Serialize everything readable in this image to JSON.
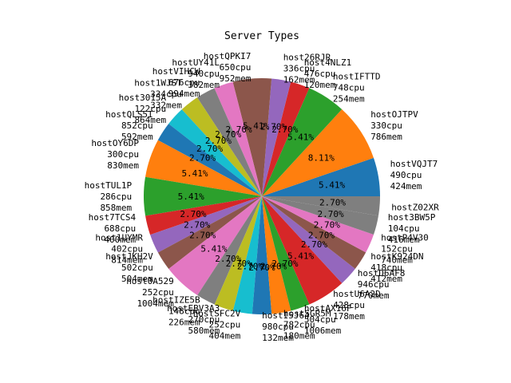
{
  "chart_data": {
    "type": "pie",
    "title": "Server Types",
    "start_angle_deg": 0,
    "direction": "counterclockwise",
    "slices": [
      {
        "label": "hostVQJT7",
        "cpu": "490cpu",
        "mem": "424mem",
        "value": 5.41,
        "color": "#1f77b4"
      },
      {
        "label": "hostOJTPV",
        "cpu": "330cpu",
        "mem": "786mem",
        "value": 8.11,
        "color": "#ff7f0e"
      },
      {
        "label": "hostIFTTD",
        "cpu": "748cpu",
        "mem": "254mem",
        "value": 5.41,
        "color": "#2ca02c"
      },
      {
        "label": "host4NLZ1",
        "cpu": "476cpu",
        "mem": "120mem",
        "value": 2.7,
        "color": "#d62728"
      },
      {
        "label": "host26RJR",
        "cpu": "336cpu",
        "mem": "162mem",
        "value": 2.7,
        "color": "#9467bd"
      },
      {
        "label": "hostQPKI7",
        "cpu": "650cpu",
        "mem": "952mem",
        "value": 5.41,
        "color": "#8c564b"
      },
      {
        "label": "hostUY41L",
        "cpu": "940cpu",
        "mem": "382mem",
        "value": 2.7,
        "color": "#e377c2"
      },
      {
        "label": "hostVIHCW",
        "cpu": "676cpu",
        "mem": "994mem",
        "value": 2.7,
        "color": "#7f7f7f"
      },
      {
        "label": "host1WJST",
        "cpu": "334cpu",
        "mem": "332mem",
        "value": 2.7,
        "color": "#bcbd22"
      },
      {
        "label": "host3015A",
        "cpu": "122cpu",
        "mem": "864mem",
        "value": 2.7,
        "color": "#17becf"
      },
      {
        "label": "hostQLS5I",
        "cpu": "852cpu",
        "mem": "592mem",
        "value": 2.7,
        "color": "#1f77b4"
      },
      {
        "label": "hostOY6DP",
        "cpu": "300cpu",
        "mem": "830mem",
        "value": 5.41,
        "color": "#ff7f0e"
      },
      {
        "label": "hostTUL1P",
        "cpu": "286cpu",
        "mem": "858mem",
        "value": 5.41,
        "color": "#2ca02c"
      },
      {
        "label": "host7TCS4",
        "cpu": "688cpu",
        "mem": "400mem",
        "value": 2.7,
        "color": "#d62728"
      },
      {
        "label": "host1UYMR",
        "cpu": "402cpu",
        "mem": "814mem",
        "value": 2.7,
        "color": "#9467bd"
      },
      {
        "label": "hostJKH2V",
        "cpu": "502cpu",
        "mem": "504mem",
        "value": 2.7,
        "color": "#8c564b"
      },
      {
        "label": "host0A529",
        "cpu": "252cpu",
        "mem": "1004mem",
        "value": 5.41,
        "color": "#e377c2"
      },
      {
        "label": "hostIZE5B",
        "cpu": "148cpu",
        "mem": "226mem",
        "value": 2.7,
        "color": "#7f7f7f"
      },
      {
        "label": "hostEBV3A3",
        "cpu": "270cpu",
        "mem": "580mem",
        "value": 2.7,
        "color": "#bcbd22"
      },
      {
        "label": "hostSFC2V",
        "cpu": "252cpu",
        "mem": "404mem",
        "value": 2.7,
        "color": "#17becf"
      },
      {
        "label": "hostI5J64",
        "cpu": "980cpu",
        "mem": "132mem",
        "value": 2.7,
        "color": "#1f77b4"
      },
      {
        "label": "hostSGR5M",
        "cpu": "782cpu",
        "mem": "180mem",
        "value": 2.7,
        "color": "#ff7f0e"
      },
      {
        "label": "hostAX16F",
        "cpu": "504cpu",
        "mem": "1006mem",
        "value": 2.7,
        "color": "#2ca02c"
      },
      {
        "label": "hostU6A2D",
        "cpu": "428cpu",
        "mem": "178mem",
        "value": 5.41,
        "color": "#d62728"
      },
      {
        "label": "hostD6AF8",
        "cpu": "946cpu",
        "mem": "770mem",
        "value": 2.7,
        "color": "#9467bd"
      },
      {
        "label": "hostK924DN",
        "cpu": "418cpu",
        "mem": "412mem",
        "value": 2.7,
        "color": "#8c564b"
      },
      {
        "label": "hostP4V30",
        "cpu": "152cpu",
        "mem": "740mem",
        "value": 2.7,
        "color": "#e377c2"
      },
      {
        "label": "host3BW5P",
        "cpu": "104cpu",
        "mem": "416mem",
        "value": 2.7,
        "color": "#7f7f7f"
      },
      {
        "label": "hostZ02XR",
        "cpu": "",
        "mem": "",
        "value": 2.7,
        "color": "#7f7f7f"
      }
    ]
  }
}
